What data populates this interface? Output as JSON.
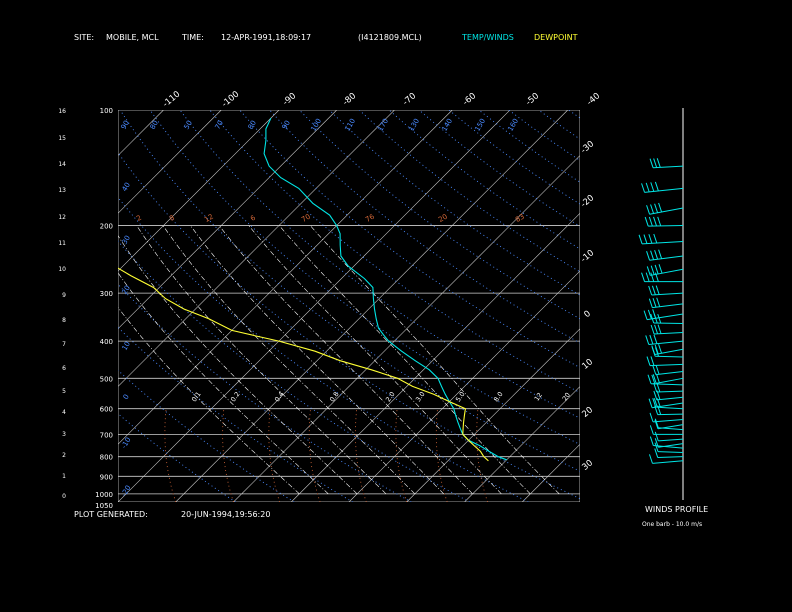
{
  "header": {
    "site_label": "SITE:",
    "site_value": "MOBILE, MCL",
    "time_label": "TIME:",
    "time_value": "12-APR-1991,18:09:17",
    "file_id": "(I4121809.MCL)",
    "legend_temp": "TEMP/WINDS",
    "legend_dew": "DEWPOINT"
  },
  "footer": {
    "generated_label": "PLOT GENERATED:",
    "generated_value": "20-JUN-1994,19:56:20",
    "winds_title": "WINDS PROFILE",
    "barb_note": "One barb - 10.0 m/s"
  },
  "colors": {
    "background": "#000000",
    "text": "#ffffff",
    "temp": "#00e5e5",
    "dewpoint": "#ffff33",
    "isotherm": "#d0d0d0",
    "isobar": "#d0d0d0",
    "dry_adiabat": "#4a8aff",
    "moist_adiabat": "#ffffff",
    "mixing_ratio": "#d86a3a",
    "wind": "#00e5e5"
  },
  "chart_data": {
    "type": "line",
    "chart_kind": "skew-T log-P diagram",
    "left_axis_ticks": [
      "16",
      "15",
      "14",
      "13",
      "12",
      "11",
      "10",
      "9",
      "8",
      "7",
      "6",
      "5",
      "4",
      "3",
      "2",
      "1",
      "0"
    ],
    "pressure_ticks": [
      "100",
      "200",
      "300",
      "400",
      "500",
      "600",
      "700",
      "800",
      "900",
      "1000",
      "1050"
    ],
    "isotherm_top_labels": [
      "-110",
      "-100",
      "-90",
      "-80",
      "-70",
      "-60",
      "-50",
      "-40"
    ],
    "isotherm_right_labels": [
      "-30",
      "-20",
      "-10",
      "0",
      "10",
      "20",
      "30"
    ],
    "mixing_ratio_labels": [
      "2",
      "8",
      "12",
      "6",
      "70",
      "76",
      "20",
      "83"
    ],
    "moist_labels": [
      "0.1",
      "0.2",
      "0.4",
      "0.8",
      "2.0",
      "3.0",
      "5.0",
      "8.0",
      "12",
      "20"
    ],
    "dry_adiabat_labels": [
      "90",
      "80",
      "50",
      "70",
      "80",
      "90",
      "100",
      "110",
      "170",
      "130",
      "140",
      "150",
      "160"
    ],
    "dry_adiabat_left_labels": [
      "40",
      "30",
      "20",
      "10",
      "0",
      "-10",
      "-20",
      "-30",
      "-35"
    ],
    "temperature": {
      "name": "TEMP/WINDS",
      "pressure_hpa": [
        815,
        800,
        775,
        750,
        725,
        700,
        675,
        650,
        625,
        600,
        575,
        550,
        525,
        500,
        475,
        450,
        425,
        400,
        385,
        370,
        350,
        330,
        310,
        290,
        275,
        255,
        240,
        225,
        210,
        200,
        188,
        175,
        160,
        150,
        140,
        130,
        120,
        112,
        105
      ],
      "temp_c": [
        20,
        18,
        15.5,
        13,
        10,
        8,
        6.5,
        5,
        3.5,
        2,
        0,
        -2,
        -4,
        -6,
        -9,
        -13,
        -17,
        -21,
        -23,
        -25,
        -27,
        -29,
        -31,
        -33,
        -36,
        -41,
        -44,
        -46,
        -48,
        -50,
        -53,
        -58,
        -63,
        -68,
        -72,
        -75,
        -77,
        -79,
        -80
      ]
    },
    "dewpoint": {
      "name": "DEWPOINT",
      "pressure_hpa": [
        820,
        800,
        775,
        750,
        725,
        700,
        675,
        650,
        625,
        600,
        575,
        550,
        525,
        500,
        475,
        450,
        425,
        400,
        390,
        375,
        350,
        330,
        310,
        290,
        270,
        250,
        230,
        215,
        200
      ],
      "temp_c": [
        17,
        15.5,
        14,
        12,
        10,
        8,
        7,
        6,
        5,
        4,
        0,
        -4,
        -9,
        -13,
        -19,
        -26,
        -32,
        -40,
        -44,
        -50,
        -56,
        -62,
        -67,
        -71,
        -77,
        -83,
        -88,
        -91,
        -92
      ]
    },
    "winds": {
      "barb_unit": "m/s",
      "barb_value": 10.0,
      "pressure_hpa": [
        820,
        800,
        780,
        760,
        740,
        720,
        700,
        680,
        660,
        640,
        620,
        600,
        580,
        560,
        540,
        520,
        500,
        480,
        460,
        440,
        420,
        400,
        380,
        360,
        340,
        320,
        300,
        280,
        260,
        240,
        220,
        200,
        180,
        160,
        140
      ],
      "direction_deg": [
        200,
        210,
        220,
        230,
        235,
        240,
        245,
        250,
        250,
        255,
        255,
        255,
        258,
        258,
        260,
        260,
        262,
        262,
        262,
        262,
        262,
        262,
        262,
        262,
        262,
        262,
        262,
        262,
        262,
        262,
        262,
        262,
        262,
        262,
        262
      ],
      "speed_ms": [
        5,
        6,
        7,
        8,
        9,
        10,
        11,
        12,
        13,
        14,
        15,
        16,
        17,
        18,
        19,
        20,
        21,
        22,
        23,
        24,
        25,
        26,
        27,
        28,
        30,
        32,
        34,
        36,
        38,
        40,
        42,
        44,
        40,
        36,
        30
      ]
    },
    "xlim_surface_c": [
      -40,
      40
    ],
    "ylim_pressure_hpa": [
      100,
      1050
    ],
    "grid": true
  }
}
